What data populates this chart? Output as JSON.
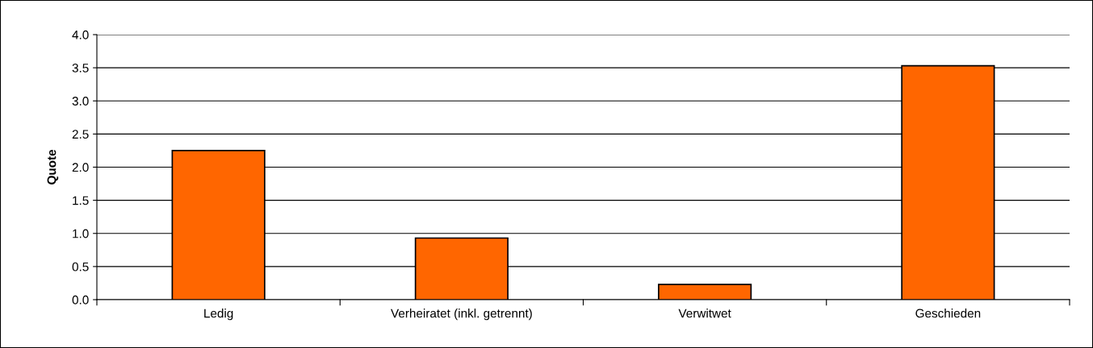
{
  "chart_data": {
    "type": "bar",
    "ylabel": "Quote",
    "categories": [
      "Ledig",
      "Verheiratet (inkl. getrennt)",
      "Verwitwet",
      "Geschieden"
    ],
    "values": [
      2.25,
      0.93,
      0.23,
      3.53
    ],
    "color": "#ff6600",
    "ylim": [
      0,
      4.0
    ],
    "yticks": [
      {
        "value": 0,
        "label": "0.0"
      },
      {
        "value": 0.5,
        "label": "0.5"
      },
      {
        "value": 1.0,
        "label": "1.0"
      },
      {
        "value": 1.5,
        "label": "1.5"
      },
      {
        "value": 2.0,
        "label": "2.0"
      },
      {
        "value": 2.5,
        "label": "2.5"
      },
      {
        "value": 3.0,
        "label": "3.0"
      },
      {
        "value": 3.5,
        "label": "3.5"
      },
      {
        "value": 4.0,
        "label": "4.0"
      }
    ],
    "grid": "y",
    "legend": false
  }
}
